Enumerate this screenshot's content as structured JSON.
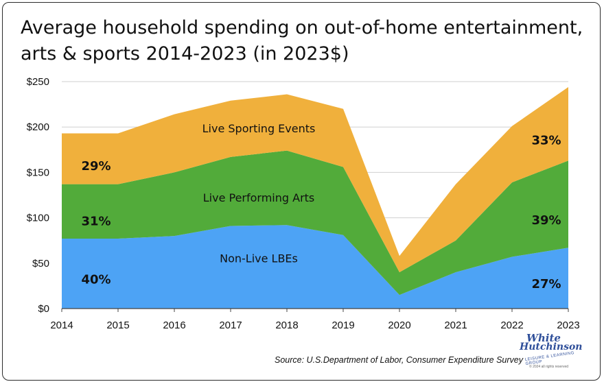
{
  "title": "Average household spending on out-of-home entertainment, arts & sports 2014-2023 (in 2023$)",
  "source": "Source: U.S.Department of Labor, Consumer Expenditure Survey",
  "logo": {
    "line1": "White",
    "line2": "Hutchinson",
    "line3": "LEISURE & LEARNING GROUP",
    "line4": "© 2024 all rights reserved"
  },
  "chart_data": {
    "type": "area",
    "stacked": true,
    "x": [
      "2014",
      "2015",
      "2016",
      "2017",
      "2018",
      "2019",
      "2020",
      "2021",
      "2022",
      "2023"
    ],
    "series": [
      {
        "name": "Non-Live LBEs",
        "color": "#4da3f5",
        "values": [
          77,
          77,
          80,
          91,
          92,
          81,
          15,
          40,
          57,
          67
        ]
      },
      {
        "name": "Live Performing Arts",
        "color": "#52ab3a",
        "values": [
          60,
          60,
          70,
          76,
          82,
          75,
          25,
          35,
          82,
          96
        ]
      },
      {
        "name": "Live Sporting Events",
        "color": "#f0b03c",
        "values": [
          56,
          56,
          64,
          62,
          62,
          64,
          18,
          62,
          62,
          81
        ]
      }
    ],
    "ylim": [
      0,
      250
    ],
    "yticks": [
      0,
      50,
      100,
      150,
      200,
      250
    ],
    "ytick_labels": [
      "$0",
      "$50",
      "$100",
      "$150",
      "$200",
      "$250"
    ],
    "grid": true,
    "annotations": [
      {
        "text": "29%",
        "x": "2014",
        "y": 158
      },
      {
        "text": "31%",
        "x": "2014",
        "y": 97
      },
      {
        "text": "40%",
        "x": "2014",
        "y": 33
      },
      {
        "text": "33%",
        "x": "2023",
        "y": 186
      },
      {
        "text": "39%",
        "x": "2023",
        "y": 98
      },
      {
        "text": "27%",
        "x": "2023",
        "y": 28
      }
    ],
    "area_labels": [
      {
        "text": "Live Sporting Events",
        "x": 2017.5,
        "y": 194
      },
      {
        "text": "Live Performing Arts",
        "x": 2017.5,
        "y": 118
      },
      {
        "text": "Non-Live LBEs",
        "x": 2017.5,
        "y": 51
      }
    ]
  }
}
